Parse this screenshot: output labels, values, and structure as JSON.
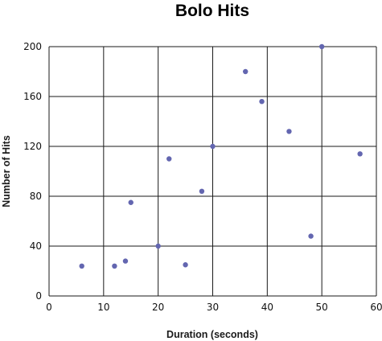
{
  "chart_data": {
    "type": "scatter",
    "title": "Bolo Hits",
    "xlabel": "Duration (seconds)",
    "ylabel": "Number of Hits",
    "xlim": [
      0,
      60
    ],
    "ylim": [
      0,
      200
    ],
    "x_ticks": [
      0,
      10,
      20,
      30,
      40,
      50,
      60
    ],
    "y_ticks": [
      0,
      40,
      80,
      120,
      160,
      200
    ],
    "grid": true,
    "point_color": "#6366b0",
    "points": [
      {
        "x": 6,
        "y": 24
      },
      {
        "x": 12,
        "y": 24
      },
      {
        "x": 14,
        "y": 28
      },
      {
        "x": 15,
        "y": 75
      },
      {
        "x": 20,
        "y": 40
      },
      {
        "x": 22,
        "y": 110
      },
      {
        "x": 25,
        "y": 25
      },
      {
        "x": 28,
        "y": 84
      },
      {
        "x": 30,
        "y": 120
      },
      {
        "x": 36,
        "y": 180
      },
      {
        "x": 39,
        "y": 156
      },
      {
        "x": 44,
        "y": 132
      },
      {
        "x": 48,
        "y": 48
      },
      {
        "x": 50,
        "y": 200
      },
      {
        "x": 57,
        "y": 114
      }
    ]
  }
}
